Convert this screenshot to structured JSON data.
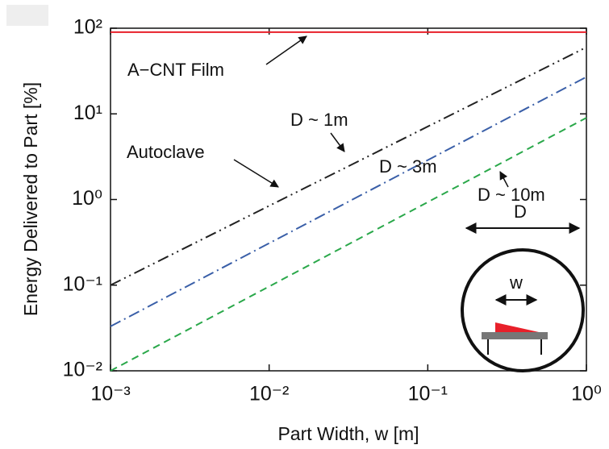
{
  "chart_data": {
    "type": "line",
    "xlabel": "Part Width, w [m]",
    "ylabel": "Energy Delivered to Part [%]",
    "xscale": "log",
    "yscale": "log",
    "x": [
      0.001,
      1
    ],
    "series": [
      {
        "name": "A−CNT Film",
        "color": "#e8202a",
        "values": [
          90,
          90
        ]
      },
      {
        "name": "D ~ 1m",
        "color": "#222222",
        "values": [
          0.1,
          60
        ]
      },
      {
        "name": "D ~ 3m",
        "color": "#3a5fa8",
        "values": [
          0.033,
          27
        ]
      },
      {
        "name": "D ~ 10m",
        "color": "#2aa84a",
        "values": [
          0.01,
          9
        ]
      }
    ],
    "annotations": [
      "Autoclave",
      "D",
      "w"
    ],
    "xlim": [
      0.001,
      1
    ],
    "xticks": [
      {
        "value": 0.001,
        "label": "10⁻³"
      },
      {
        "value": 0.01,
        "label": "10⁻²"
      },
      {
        "value": 0.1,
        "label": "10⁻¹"
      },
      {
        "value": 1,
        "label": "10⁰"
      }
    ],
    "ylim": [
      0.01,
      100
    ],
    "yticks": [
      {
        "value": 0.01,
        "label": "10⁻²"
      },
      {
        "value": 0.1,
        "label": "10⁻¹"
      },
      {
        "value": 1,
        "label": "10⁰"
      },
      {
        "value": 10,
        "label": "10¹"
      },
      {
        "value": 100,
        "label": "10²"
      }
    ]
  }
}
